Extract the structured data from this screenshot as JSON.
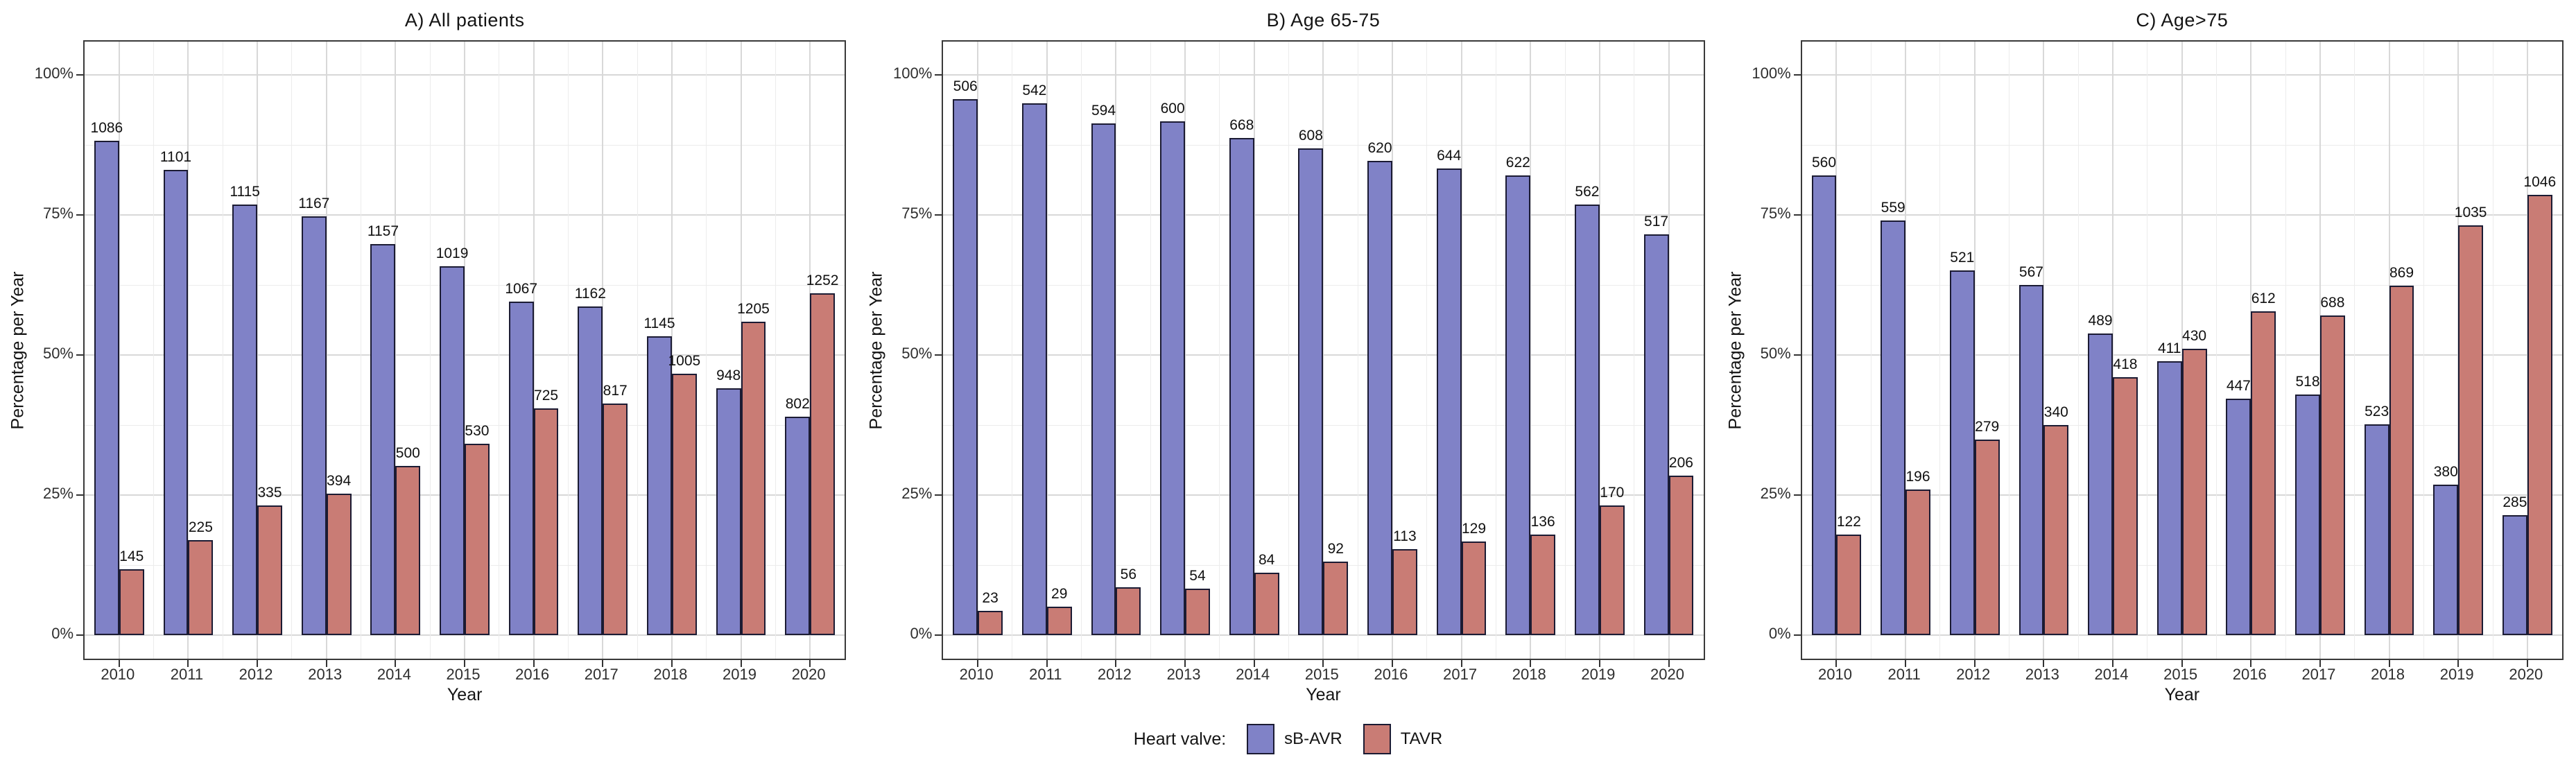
{
  "legend": {
    "title": "Heart valve:",
    "position": "bottom",
    "series": [
      {
        "label": "sB-AVR",
        "color": "#8082C7",
        "border": "#1b1b33"
      },
      {
        "label": "TAVR",
        "color": "#C97C75",
        "border": "#1b1b33"
      }
    ]
  },
  "colors": {
    "grid_major": "#d8d8d8",
    "grid_minor": "#ececec",
    "panel_border": "#3a3a3a",
    "bar_outline": "#1b1b33",
    "text": "#141414"
  },
  "chart_data": [
    {
      "type": "bar",
      "title": "A) All patients",
      "xlabel": "Year",
      "ylabel": "Percentage per Year",
      "categories": [
        "2010",
        "2011",
        "2012",
        "2013",
        "2014",
        "2015",
        "2016",
        "2017",
        "2018",
        "2019",
        "2020"
      ],
      "y_ticks": [
        "0%",
        "25%",
        "50%",
        "75%",
        "100%"
      ],
      "y_tick_values": [
        0,
        25,
        50,
        75,
        100
      ],
      "ylim": [
        0,
        100
      ],
      "grid": true,
      "legend_position": "bottom",
      "value_labels": "patient counts shown above each bar; bar height = share of year total",
      "series": [
        {
          "name": "sB-AVR",
          "counts": [
            1086,
            1101,
            1115,
            1167,
            1157,
            1019,
            1067,
            1162,
            1145,
            948,
            802
          ],
          "percentages": [
            88.2,
            83.0,
            76.9,
            74.8,
            69.8,
            65.8,
            59.5,
            58.7,
            53.3,
            44.0,
            39.0
          ]
        },
        {
          "name": "TAVR",
          "counts": [
            145,
            225,
            335,
            394,
            500,
            530,
            725,
            817,
            1005,
            1205,
            1252
          ],
          "percentages": [
            11.8,
            17.0,
            23.1,
            25.2,
            30.2,
            34.2,
            40.5,
            41.3,
            46.7,
            56.0,
            61.0
          ]
        }
      ]
    },
    {
      "type": "bar",
      "title": "B) Age 65-75",
      "xlabel": "Year",
      "ylabel": "Percentage per Year",
      "categories": [
        "2010",
        "2011",
        "2012",
        "2013",
        "2014",
        "2015",
        "2016",
        "2017",
        "2018",
        "2019",
        "2020"
      ],
      "y_ticks": [
        "0%",
        "25%",
        "50%",
        "75%",
        "100%"
      ],
      "y_tick_values": [
        0,
        25,
        50,
        75,
        100
      ],
      "ylim": [
        0,
        100
      ],
      "grid": true,
      "legend_position": "bottom",
      "value_labels": "patient counts shown above each bar; bar height = share of year total",
      "series": [
        {
          "name": "sB-AVR",
          "counts": [
            506,
            542,
            594,
            600,
            668,
            608,
            620,
            644,
            622,
            562,
            517
          ],
          "percentages": [
            95.7,
            94.9,
            91.4,
            91.7,
            88.8,
            86.9,
            84.6,
            83.3,
            82.1,
            76.8,
            71.5
          ]
        },
        {
          "name": "TAVR",
          "counts": [
            23,
            29,
            56,
            54,
            84,
            92,
            113,
            129,
            136,
            170,
            206
          ],
          "percentages": [
            4.3,
            5.1,
            8.6,
            8.3,
            11.2,
            13.1,
            15.4,
            16.7,
            17.9,
            23.2,
            28.5
          ]
        }
      ]
    },
    {
      "type": "bar",
      "title": "C) Age>75",
      "xlabel": "Year",
      "ylabel": "Percentage per Year",
      "categories": [
        "2010",
        "2011",
        "2012",
        "2013",
        "2014",
        "2015",
        "2016",
        "2017",
        "2018",
        "2019",
        "2020"
      ],
      "y_ticks": [
        "0%",
        "25%",
        "50%",
        "75%",
        "100%"
      ],
      "y_tick_values": [
        0,
        25,
        50,
        75,
        100
      ],
      "ylim": [
        0,
        100
      ],
      "grid": true,
      "legend_position": "bottom",
      "value_labels": "patient counts shown above each bar; bar height = share of year total",
      "series": [
        {
          "name": "sB-AVR",
          "counts": [
            560,
            559,
            521,
            567,
            489,
            411,
            447,
            518,
            523,
            380,
            285
          ],
          "percentages": [
            82.1,
            74.0,
            65.1,
            62.5,
            53.9,
            48.9,
            42.2,
            43.0,
            37.6,
            26.9,
            21.4
          ]
        },
        {
          "name": "TAVR",
          "counts": [
            122,
            196,
            279,
            340,
            418,
            430,
            612,
            688,
            869,
            1035,
            1046
          ],
          "percentages": [
            17.9,
            26.0,
            34.9,
            37.5,
            46.1,
            51.1,
            57.8,
            57.0,
            62.4,
            73.1,
            78.6
          ]
        }
      ]
    }
  ]
}
